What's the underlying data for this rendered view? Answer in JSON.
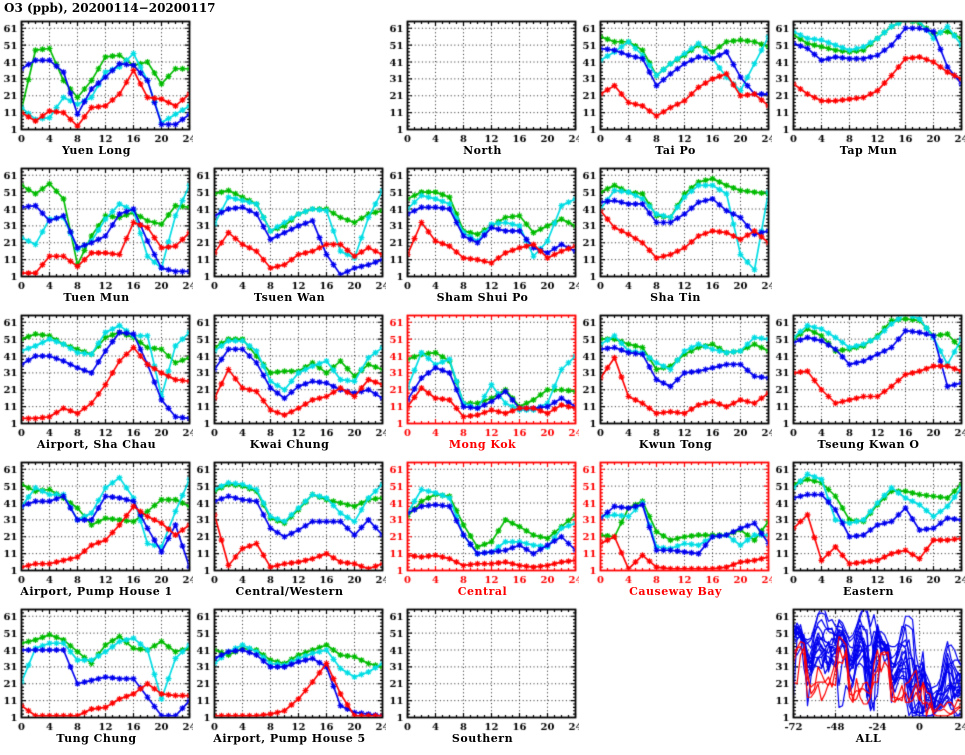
{
  "header": {
    "title": "O3 (ppb), 20200114−20200117"
  },
  "palette": {
    "green": "#00bb00",
    "cyan": "#00dde4",
    "blue": "#0000ee",
    "red": "#ff0000",
    "frame": "#000000",
    "frame_red": "#ff0000",
    "grid": "#222222"
  },
  "axes": {
    "y_ticks": [
      1,
      11,
      21,
      31,
      41,
      51,
      61
    ],
    "y_range": [
      1,
      65
    ],
    "x_ticks": [
      0,
      4,
      8,
      12,
      16,
      20,
      24
    ],
    "x_range": [
      0,
      24
    ],
    "x_step": 2,
    "grid_style": "dotted"
  },
  "chart_data": [
    {
      "type": "line",
      "title": "Yuen Long",
      "red_style": false,
      "series": {
        "green": [
          13,
          48,
          49,
          30,
          20,
          30,
          44,
          45,
          39,
          41,
          28,
          37,
          37
        ],
        "cyan": [
          14,
          7,
          8,
          20,
          16,
          20,
          35,
          38,
          46,
          30,
          5,
          10,
          15
        ],
        "blue": [
          37,
          42,
          42,
          35,
          10,
          25,
          32,
          40,
          39,
          30,
          4,
          4,
          10
        ],
        "red": [
          11,
          6,
          12,
          11,
          3,
          14,
          15,
          22,
          36,
          20,
          19,
          15,
          22
        ]
      }
    },
    {
      "type": "line",
      "title": "North",
      "red_style": false,
      "series": {}
    },
    {
      "type": "line",
      "title": "Tai Po",
      "red_style": false,
      "series": {
        "green": [
          56,
          53,
          53,
          48,
          33,
          40,
          45,
          51,
          47,
          53,
          54,
          53,
          50
        ],
        "cyan": [
          42,
          47,
          53,
          45,
          33,
          40,
          46,
          52,
          43,
          32,
          24,
          40,
          56
        ],
        "blue": [
          49,
          48,
          45,
          43,
          27,
          34,
          40,
          44,
          43,
          47,
          32,
          22,
          22
        ],
        "red": [
          22,
          27,
          17,
          15,
          9,
          14,
          18,
          26,
          31,
          34,
          21,
          22,
          15
        ]
      }
    },
    {
      "type": "line",
      "title": "Tap Mun",
      "red_style": false,
      "series": {
        "green": [
          57,
          52,
          50,
          48,
          47,
          48,
          55,
          62,
          66,
          64,
          58,
          59,
          55
        ],
        "cyan": [
          59,
          55,
          54,
          51,
          48,
          50,
          55,
          62,
          66,
          65,
          55,
          62,
          51
        ],
        "blue": [
          52,
          49,
          42,
          44,
          43,
          43,
          45,
          51,
          61,
          61,
          59,
          38,
          28
        ],
        "red": [
          28,
          22,
          18,
          18,
          19,
          20,
          24,
          33,
          43,
          44,
          41,
          35,
          31
        ]
      }
    },
    {
      "type": "line",
      "title": "Tuen Mun",
      "red_style": false,
      "series": {
        "green": [
          55,
          50,
          56,
          47,
          8,
          25,
          37,
          36,
          39,
          34,
          32,
          43,
          42
        ],
        "cyan": [
          24,
          20,
          35,
          36,
          17,
          22,
          35,
          44,
          40,
          13,
          6,
          37,
          55
        ],
        "blue": [
          42,
          43,
          34,
          37,
          18,
          21,
          25,
          38,
          41,
          22,
          6,
          4,
          4
        ],
        "red": [
          3,
          3,
          13,
          13,
          7,
          15,
          15,
          14,
          33,
          30,
          18,
          19,
          27
        ]
      }
    },
    {
      "type": "line",
      "title": "Tsuen Wan",
      "red_style": false,
      "series": {
        "green": [
          50,
          52,
          48,
          44,
          28,
          31,
          38,
          41,
          41,
          36,
          33,
          38,
          40
        ],
        "cyan": [
          32,
          48,
          46,
          44,
          28,
          33,
          38,
          41,
          40,
          16,
          12,
          36,
          52
        ],
        "blue": [
          37,
          41,
          42,
          38,
          23,
          27,
          31,
          34,
          14,
          2,
          6,
          8,
          11
        ],
        "red": [
          15,
          27,
          20,
          16,
          6,
          8,
          14,
          16,
          20,
          20,
          13,
          18,
          14
        ]
      }
    },
    {
      "type": "line",
      "title": "Sham Shui Po",
      "red_style": false,
      "series": {
        "green": [
          47,
          51,
          51,
          48,
          28,
          26,
          31,
          36,
          37,
          27,
          31,
          35,
          31
        ],
        "cyan": [
          41,
          49,
          47,
          44,
          27,
          22,
          32,
          33,
          31,
          13,
          22,
          43,
          47
        ],
        "blue": [
          38,
          42,
          42,
          41,
          25,
          21,
          30,
          28,
          28,
          18,
          15,
          20,
          16
        ],
        "red": [
          14,
          33,
          22,
          19,
          12,
          11,
          9,
          15,
          18,
          20,
          12,
          16,
          19
        ]
      }
    },
    {
      "type": "line",
      "title": "Sha Tin",
      "red_style": false,
      "series": {
        "green": [
          51,
          55,
          51,
          50,
          37,
          36,
          50,
          57,
          59,
          55,
          52,
          51,
          50
        ],
        "cyan": [
          41,
          52,
          51,
          47,
          38,
          36,
          48,
          55,
          55,
          50,
          14,
          5,
          51
        ],
        "blue": [
          45,
          46,
          44,
          44,
          33,
          33,
          38,
          45,
          47,
          40,
          36,
          26,
          28
        ],
        "red": [
          40,
          30,
          26,
          21,
          12,
          14,
          18,
          25,
          28,
          27,
          23,
          28,
          21
        ]
      }
    },
    {
      "type": "line",
      "title": "Airport, Sha Chau",
      "red_style": false,
      "series": {
        "green": [
          51,
          54,
          53,
          48,
          45,
          42,
          52,
          55,
          52,
          46,
          45,
          37,
          40
        ],
        "cyan": [
          44,
          47,
          51,
          48,
          43,
          42,
          55,
          59,
          53,
          53,
          17,
          47,
          55
        ],
        "blue": [
          36,
          41,
          41,
          38,
          34,
          31,
          44,
          55,
          54,
          36,
          15,
          5,
          4
        ],
        "red": [
          4,
          4,
          5,
          10,
          7,
          13,
          24,
          38,
          46,
          36,
          31,
          27,
          26
        ]
      }
    },
    {
      "type": "line",
      "title": "Kwai Chung",
      "red_style": false,
      "series": {
        "green": [
          46,
          51,
          51,
          41,
          31,
          32,
          32,
          37,
          31,
          38,
          29,
          36,
          33
        ],
        "cyan": [
          44,
          50,
          50,
          44,
          26,
          21,
          31,
          35,
          38,
          27,
          26,
          40,
          46
        ],
        "blue": [
          33,
          45,
          45,
          37,
          22,
          16,
          23,
          26,
          25,
          21,
          19,
          21,
          16
        ],
        "red": [
          16,
          33,
          22,
          20,
          9,
          6,
          10,
          15,
          17,
          22,
          17,
          27,
          24
        ]
      }
    },
    {
      "type": "line",
      "title": "Mong Kok",
      "red_style": true,
      "series": {
        "green": [
          39,
          42,
          43,
          38,
          13,
          13,
          16,
          21,
          11,
          15,
          21,
          21,
          20
        ],
        "cyan": [
          22,
          43,
          36,
          39,
          13,
          10,
          24,
          13,
          9,
          9,
          13,
          33,
          41
        ],
        "blue": [
          15,
          28,
          34,
          31,
          11,
          10,
          14,
          20,
          10,
          10,
          11,
          16,
          11
        ],
        "red": [
          11,
          22,
          16,
          15,
          5,
          6,
          9,
          7,
          10,
          10,
          7,
          12,
          10
        ]
      }
    },
    {
      "type": "line",
      "title": "Kwun Tong",
      "red_style": false,
      "series": {
        "green": [
          51,
          51,
          48,
          46,
          33,
          35,
          42,
          46,
          48,
          43,
          44,
          48,
          44
        ],
        "cyan": [
          48,
          53,
          44,
          43,
          37,
          33,
          44,
          48,
          45,
          43,
          44,
          52,
          51
        ],
        "blue": [
          45,
          46,
          43,
          42,
          27,
          23,
          31,
          32,
          34,
          36,
          36,
          29,
          28
        ],
        "red": [
          28,
          40,
          17,
          13,
          7,
          8,
          7,
          12,
          14,
          11,
          15,
          13,
          19
        ]
      }
    },
    {
      "type": "line",
      "title": "Tseung Kwan O",
      "red_style": false,
      "series": {
        "green": [
          51,
          57,
          53,
          44,
          45,
          47,
          53,
          62,
          63,
          62,
          53,
          54,
          45
        ],
        "cyan": [
          52,
          59,
          57,
          52,
          46,
          48,
          52,
          60,
          66,
          63,
          52,
          36,
          51
        ],
        "blue": [
          49,
          52,
          50,
          45,
          36,
          38,
          42,
          46,
          56,
          55,
          53,
          23,
          25
        ],
        "red": [
          31,
          32,
          21,
          13,
          15,
          17,
          17,
          23,
          30,
          32,
          35,
          35,
          32
        ]
      }
    },
    {
      "type": "line",
      "title": "Airport, Pump House 1",
      "red_style": false,
      "series": {
        "green": [
          52,
          48,
          49,
          44,
          38,
          28,
          32,
          31,
          30,
          36,
          43,
          43,
          39
        ],
        "cyan": [
          39,
          50,
          46,
          46,
          31,
          35,
          50,
          56,
          44,
          17,
          15,
          36,
          55
        ],
        "blue": [
          39,
          42,
          42,
          45,
          31,
          31,
          45,
          44,
          42,
          26,
          12,
          28,
          3
        ],
        "red": [
          3,
          5,
          5,
          7,
          9,
          16,
          19,
          28,
          39,
          33,
          29,
          22,
          28
        ]
      }
    },
    {
      "type": "line",
      "title": "Central/Western",
      "red_style": false,
      "series": {
        "green": [
          48,
          52,
          51,
          48,
          32,
          29,
          37,
          46,
          43,
          41,
          39,
          43,
          44
        ],
        "cyan": [
          49,
          53,
          52,
          49,
          33,
          30,
          38,
          46,
          44,
          35,
          30,
          44,
          52
        ],
        "blue": [
          42,
          45,
          43,
          42,
          26,
          21,
          25,
          30,
          30,
          30,
          22,
          31,
          22
        ],
        "red": [
          34,
          4,
          14,
          17,
          3,
          5,
          6,
          8,
          11,
          6,
          5,
          2,
          5
        ]
      }
    },
    {
      "type": "line",
      "title": "Central",
      "red_style": true,
      "series": {
        "green": [
          33,
          42,
          46,
          45,
          28,
          15,
          18,
          31,
          27,
          22,
          20,
          27,
          34
        ],
        "cyan": [
          35,
          49,
          47,
          44,
          22,
          11,
          12,
          18,
          18,
          16,
          15,
          26,
          29
        ],
        "blue": [
          35,
          39,
          40,
          39,
          22,
          11,
          12,
          13,
          16,
          11,
          16,
          21,
          13
        ],
        "red": [
          10,
          9,
          10,
          8,
          4,
          5,
          5,
          6,
          4,
          3,
          4,
          6,
          7
        ]
      }
    },
    {
      "type": "line",
      "title": "Causeway Bay",
      "red_style": true,
      "series": {
        "green": [
          22,
          21,
          38,
          42,
          24,
          19,
          21,
          22,
          22,
          22,
          25,
          19,
          30
        ],
        "cyan": [
          33,
          34,
          33,
          41,
          15,
          14,
          17,
          16,
          21,
          22,
          16,
          22,
          22
        ],
        "blue": [
          32,
          39,
          38,
          40,
          13,
          13,
          12,
          11,
          21,
          22,
          26,
          29,
          17
        ],
        "red": [
          17,
          21,
          2,
          10,
          3,
          2,
          2,
          2,
          2,
          3,
          6,
          7,
          9
        ]
      }
    },
    {
      "type": "line",
      "title": "Eastern",
      "red_style": false,
      "series": {
        "green": [
          52,
          55,
          53,
          45,
          31,
          30,
          40,
          48,
          48,
          46,
          45,
          44,
          52
        ],
        "cyan": [
          50,
          58,
          55,
          31,
          29,
          31,
          41,
          50,
          44,
          40,
          33,
          39,
          50
        ],
        "blue": [
          44,
          46,
          46,
          37,
          21,
          22,
          28,
          30,
          38,
          25,
          26,
          32,
          31
        ],
        "red": [
          26,
          34,
          7,
          15,
          5,
          6,
          7,
          11,
          13,
          8,
          19,
          19,
          20
        ]
      }
    },
    {
      "type": "line",
      "title": "Tung Chung",
      "red_style": false,
      "series": {
        "green": [
          45,
          47,
          50,
          47,
          40,
          33,
          44,
          49,
          42,
          41,
          46,
          40,
          42
        ],
        "cyan": [
          22,
          42,
          45,
          45,
          35,
          35,
          40,
          46,
          48,
          41,
          12,
          36,
          44
        ],
        "blue": [
          41,
          41,
          41,
          41,
          21,
          23,
          25,
          24,
          24,
          13,
          2,
          2,
          11
        ],
        "red": [
          8,
          2,
          2,
          2,
          2,
          6,
          7,
          12,
          15,
          21,
          15,
          14,
          14
        ]
      }
    },
    {
      "type": "line",
      "title": "Airport, Pump House 5",
      "red_style": false,
      "series": {
        "green": [
          41,
          38,
          42,
          41,
          35,
          33,
          38,
          41,
          44,
          38,
          37,
          33,
          31
        ],
        "cyan": [
          33,
          40,
          44,
          40,
          33,
          32,
          36,
          39,
          41,
          30,
          25,
          28,
          33
        ],
        "blue": [
          36,
          40,
          41,
          38,
          31,
          31,
          34,
          36,
          31,
          8,
          4,
          3,
          2
        ],
        "red": [
          2,
          2,
          2,
          2,
          3,
          5,
          12,
          22,
          33,
          15,
          2,
          2,
          2
        ]
      }
    },
    {
      "type": "line",
      "title": "Southern",
      "red_style": false,
      "series": {}
    },
    {
      "type": "line",
      "title": "ALL",
      "red_style": false,
      "overlay": true,
      "x_range": [
        -72,
        24
      ],
      "x_ticks": [
        -72,
        -48,
        -24,
        0,
        24
      ],
      "overlay_rule": "one line per station: green,cyan,blue,red day-series concatenated over -72..24; red lines are the red-labelled stations, blue lines all others"
    }
  ]
}
